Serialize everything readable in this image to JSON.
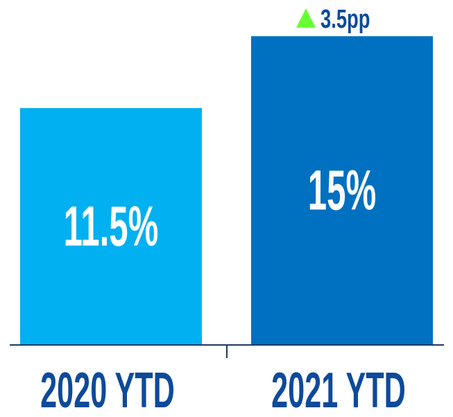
{
  "chart_data": {
    "type": "bar",
    "categories": [
      "2020 YTD",
      "2021 YTD"
    ],
    "values": [
      11.5,
      15
    ],
    "data_labels": [
      "11.5%",
      "15%"
    ],
    "colors": [
      "#00b0f0",
      "#0070c0"
    ],
    "label_color": "#0d4a9a",
    "axis_color": "#1f3864",
    "title": "",
    "xlabel": "",
    "ylabel": "",
    "grid": false,
    "annotation": {
      "text": "3.5pp",
      "icon": "triangle-up-icon",
      "icon_color": "#66ff33",
      "target": "2021 YTD"
    }
  }
}
